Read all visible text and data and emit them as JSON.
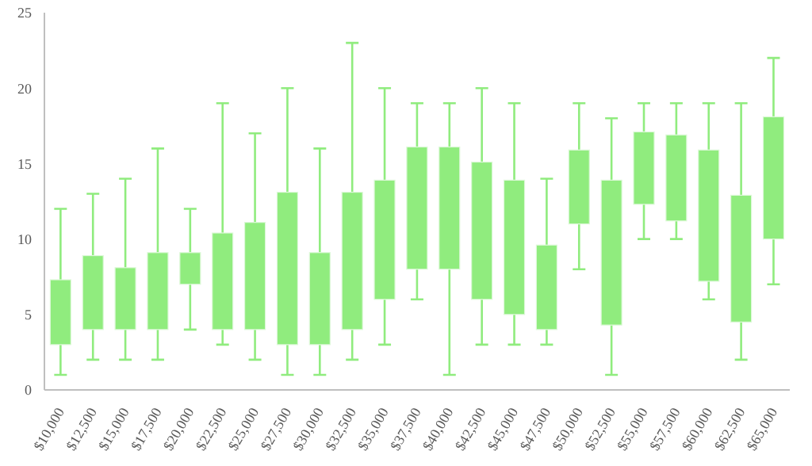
{
  "chart_data": {
    "type": "candlestick",
    "categories": [
      "$10,000",
      "$12,500",
      "$15,000",
      "$17,500",
      "$20,000",
      "$22,500",
      "$25,000",
      "$27,500",
      "$30,000",
      "$32,500",
      "$35,000",
      "$37,500",
      "$40,000",
      "$42,500",
      "$45,000",
      "$47,500",
      "$50,000",
      "$52,500",
      "$55,000",
      "$57,500",
      "$60,000",
      "$62,500",
      "$65,000"
    ],
    "ohlc": [
      [
        3,
        12,
        1,
        7.3
      ],
      [
        4,
        13,
        2,
        8.9
      ],
      [
        4,
        14,
        2,
        8.1
      ],
      [
        4,
        16,
        2,
        9.1
      ],
      [
        7,
        12,
        4,
        9.1
      ],
      [
        4,
        19,
        3,
        10.4
      ],
      [
        4,
        17,
        2,
        11.1
      ],
      [
        3,
        20,
        1,
        13.1
      ],
      [
        3,
        16,
        1,
        9.1
      ],
      [
        4,
        23,
        2,
        13.1
      ],
      [
        6,
        20,
        3,
        13.9
      ],
      [
        8,
        19,
        6,
        16.1
      ],
      [
        8,
        19,
        1,
        16.1
      ],
      [
        6,
        20,
        3,
        15.1
      ],
      [
        5,
        19,
        3,
        13.9
      ],
      [
        4,
        14,
        3,
        9.6
      ],
      [
        11,
        19,
        8,
        15.9
      ],
      [
        4.3,
        18,
        1,
        13.9
      ],
      [
        12.3,
        19,
        10,
        17.1
      ],
      [
        11.2,
        19,
        10,
        16.9
      ],
      [
        7.2,
        19,
        6,
        15.9
      ],
      [
        4.5,
        19,
        2,
        12.9
      ],
      [
        10,
        22,
        7,
        18.1
      ]
    ],
    "color": "#90ec7e",
    "ylim": [
      0,
      25
    ],
    "yticks": [
      0,
      5,
      10,
      15,
      20,
      25
    ],
    "grid": false,
    "legend": false
  }
}
